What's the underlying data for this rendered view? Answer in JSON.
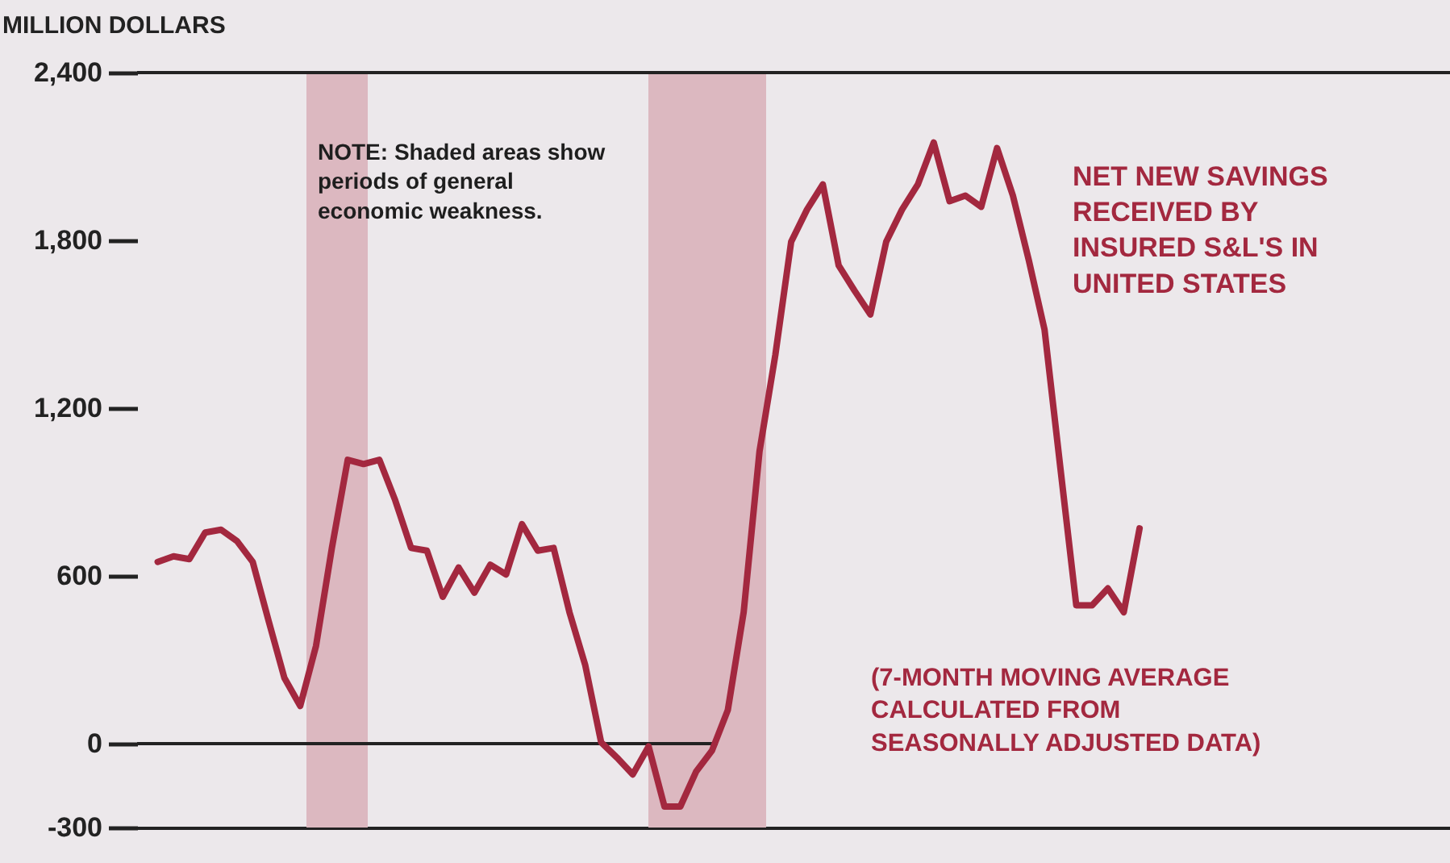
{
  "chart_data": {
    "type": "line",
    "ylabel": "MILLION DOLLARS",
    "categories": [
      null,
      null,
      null,
      null,
      null,
      null,
      null,
      null,
      null,
      null,
      null,
      null,
      null,
      null,
      null,
      null,
      null,
      null,
      null,
      null,
      null,
      null,
      null,
      null,
      null,
      null,
      null,
      null,
      null,
      null,
      null,
      null,
      null,
      null,
      null,
      null,
      null,
      null,
      null,
      null,
      null,
      null,
      null,
      null,
      null,
      null,
      null,
      null,
      null,
      null,
      null,
      null,
      null,
      null,
      null,
      null,
      null,
      null,
      null,
      null,
      null,
      null,
      null
    ],
    "series": [
      {
        "color": "#a3283f",
        "values": [
          650,
          670,
          660,
          755,
          765,
          725,
          650,
          440,
          235,
          135,
          350,
          700,
          1015,
          1000,
          1015,
          870,
          700,
          690,
          525,
          630,
          540,
          640,
          605,
          785,
          690,
          700,
          470,
          280,
          5,
          -50,
          -110,
          -10,
          -225,
          -225,
          -100,
          -25,
          120,
          470,
          1045,
          1390,
          1795,
          1910,
          2000,
          1710,
          1620,
          1535,
          1795,
          1910,
          2000,
          2150,
          1940,
          1960,
          1920,
          2130,
          1960,
          1730,
          1480,
          985,
          495,
          495,
          555,
          470,
          770
        ]
      }
    ],
    "ylim": [
      -300,
      2400
    ],
    "yticks": [
      {
        "value": -300,
        "label": "-300"
      },
      0,
      600,
      {
        "value": 1200,
        "label": "1,200"
      },
      {
        "value": 1800,
        "label": "1,800"
      },
      {
        "value": 2400,
        "label": "2,400"
      }
    ],
    "grid": false,
    "ref_lines": [
      {
        "axis": "y",
        "value": 0,
        "color": "#222222"
      }
    ],
    "annotations": [
      "NOTE: Shaded areas show periods of general economic weakness.",
      "NET NEW SAVINGS RECEIVED BY INSURED S&L'S IN UNITED STATES",
      "(7-MONTH MOVING AVERAGE CALCULATED FROM SEASONALLY ADJUSTED DATA)"
    ]
  }
}
